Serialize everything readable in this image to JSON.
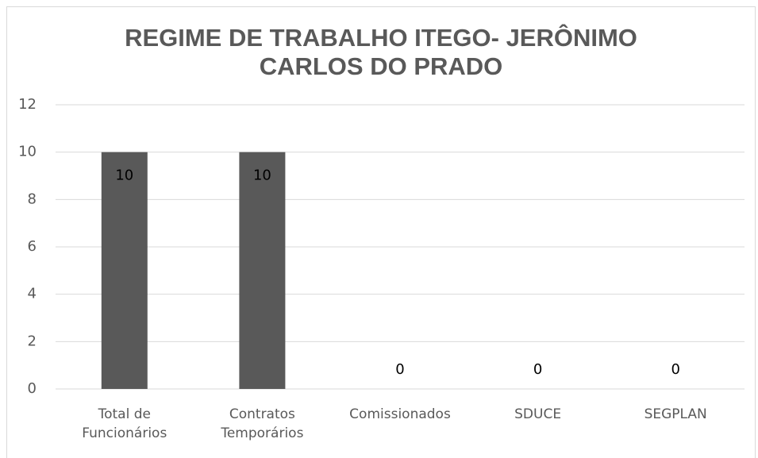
{
  "chart_data": {
    "type": "bar",
    "title": "REGIME DE TRABALHO ITEGO- JERÔNIMO CARLOS DO PRADO",
    "categories": [
      "Total de Funcionários",
      "Contratos Temporários",
      "Comissionados",
      "SDUCE",
      "SEGPLAN"
    ],
    "values": [
      10,
      10,
      0,
      0,
      0
    ],
    "color": "#595959",
    "ylim": [
      0,
      12
    ],
    "yticks": [
      0,
      2,
      4,
      6,
      8,
      10,
      12
    ],
    "grid": true
  }
}
